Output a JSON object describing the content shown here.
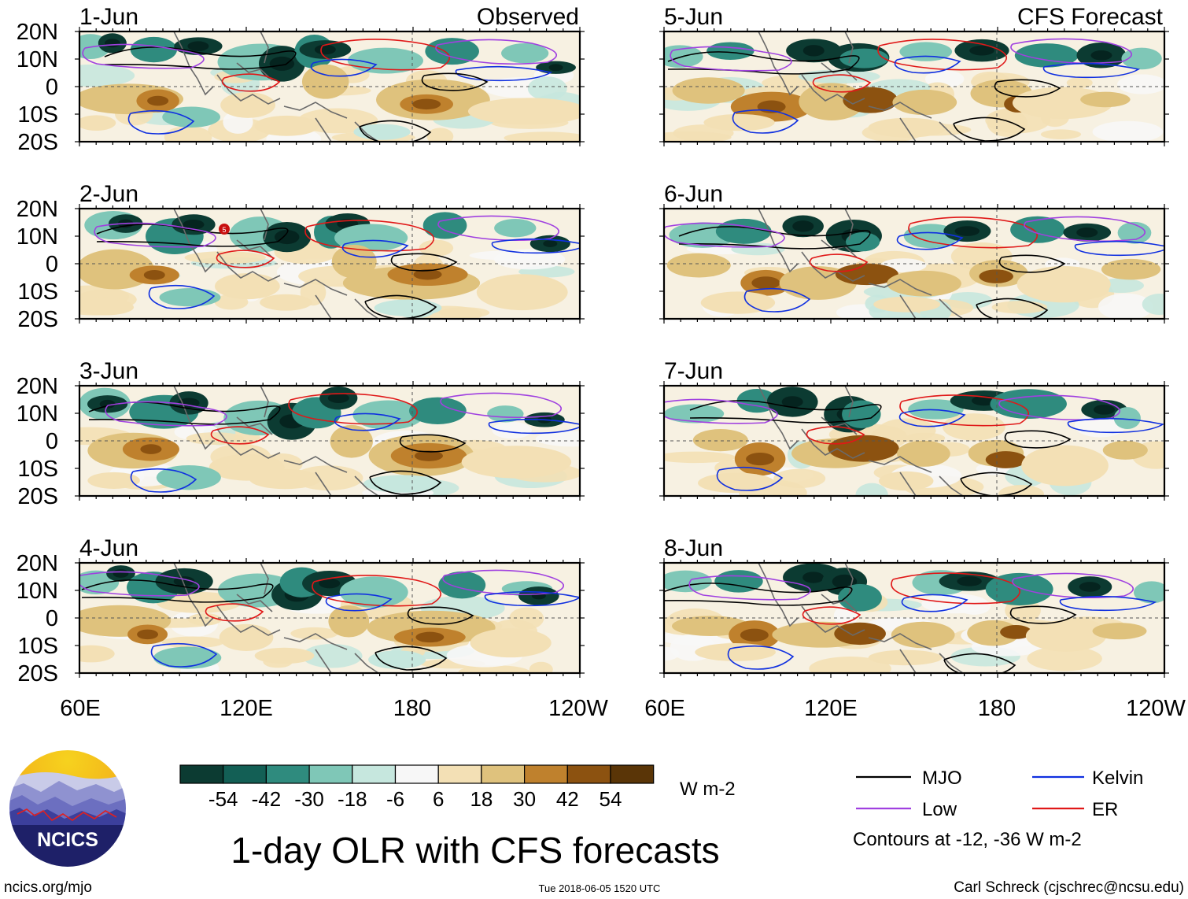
{
  "header": {
    "observed_label": "Observed",
    "forecast_label": "CFS Forecast"
  },
  "axes": {
    "lat_labels": [
      "20N",
      "10N",
      "0",
      "10S",
      "20S"
    ],
    "lon_labels": [
      "60E",
      "120E",
      "180",
      "120W"
    ]
  },
  "panels": [
    {
      "date": "1-Jun",
      "column": "observed",
      "row": 0
    },
    {
      "date": "2-Jun",
      "column": "observed",
      "row": 1
    },
    {
      "date": "3-Jun",
      "column": "observed",
      "row": 2
    },
    {
      "date": "4-Jun",
      "column": "observed",
      "row": 3
    },
    {
      "date": "5-Jun",
      "column": "forecast",
      "row": 0
    },
    {
      "date": "6-Jun",
      "column": "forecast",
      "row": 1
    },
    {
      "date": "7-Jun",
      "column": "forecast",
      "row": 2
    },
    {
      "date": "8-Jun",
      "column": "forecast",
      "row": 3
    }
  ],
  "colorbar": {
    "colors": [
      "#0c3b32",
      "#135f55",
      "#2f8b7e",
      "#7fc7b7",
      "#c6e7de",
      "#f7f7f7",
      "#f3e0b5",
      "#dfc27d",
      "#bf812d",
      "#8c5210",
      "#5a3507"
    ],
    "tick_labels": [
      "-54",
      "-42",
      "-30",
      "-18",
      "-6",
      "6",
      "18",
      "30",
      "42",
      "54"
    ],
    "unit": "W m-2"
  },
  "legend": {
    "items": [
      {
        "label": "MJO",
        "color": "#000000"
      },
      {
        "label": "Kelvin",
        "color": "#1030e0"
      },
      {
        "label": "Low",
        "color": "#a040e0"
      },
      {
        "label": "ER",
        "color": "#e01818"
      }
    ],
    "note": "Contours at -12, -36 W m-2"
  },
  "title": "1-day OLR with CFS forecasts",
  "logo": {
    "text": "NCICS"
  },
  "footer": {
    "url": "ncics.org/mjo",
    "timestamp": "Tue 2018-06-05 1520 UTC",
    "credit": "Carl Schreck (cjschrec@ncsu.edu)"
  },
  "storm_marker": "5"
}
